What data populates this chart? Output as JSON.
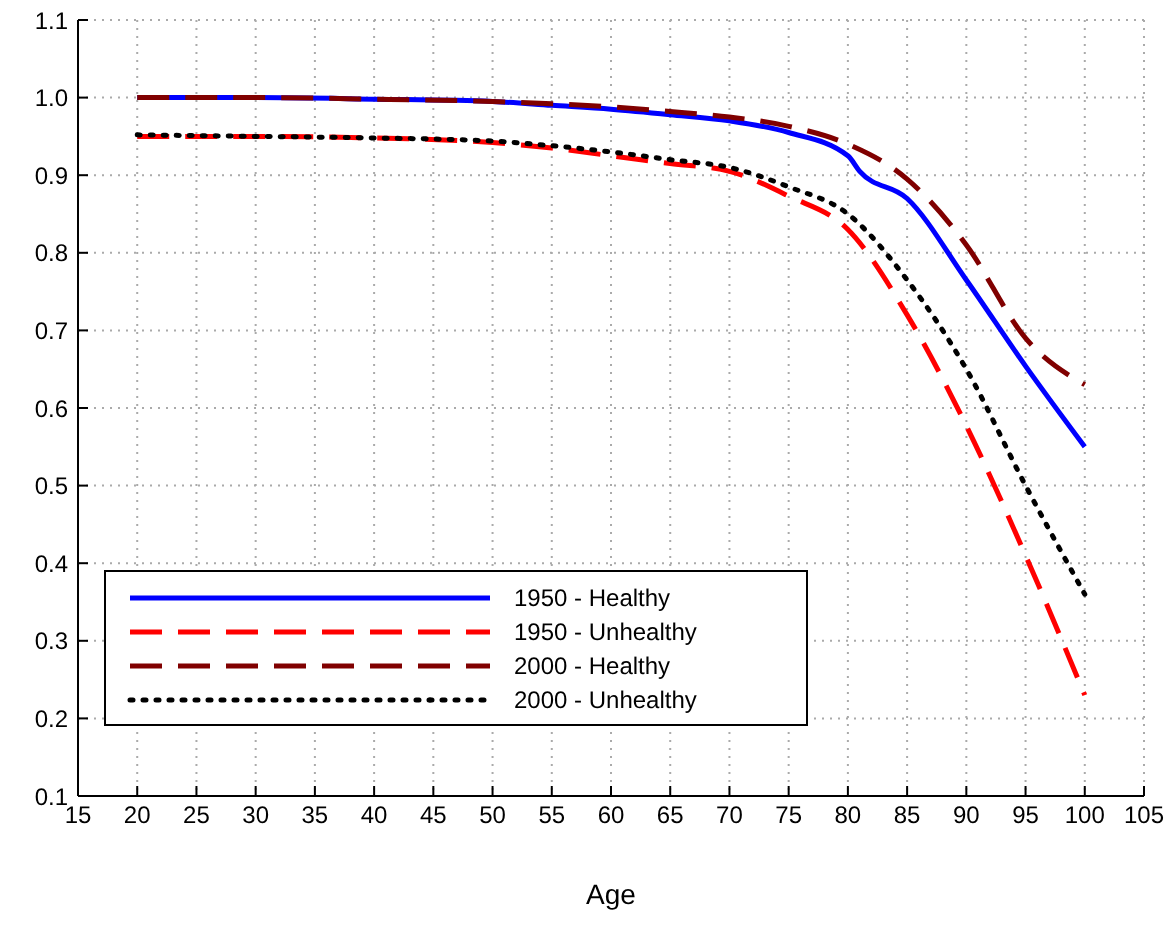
{
  "chart_data": {
    "type": "line",
    "xlabel": "Age",
    "xlim": [
      15,
      105
    ],
    "xticks": [
      15,
      20,
      25,
      30,
      35,
      40,
      45,
      50,
      55,
      60,
      65,
      70,
      75,
      80,
      85,
      90,
      95,
      100,
      105
    ],
    "ylim": [
      0.1,
      1.1
    ],
    "yticks": [
      0.1,
      0.2,
      0.3,
      0.4,
      0.5,
      0.6,
      0.7,
      0.8,
      0.9,
      {
        "value": 1,
        "label": "1.0"
      },
      1.1
    ],
    "grid": true,
    "legend": "bottom left",
    "marker": "none",
    "series": [
      {
        "name": "1950 - Healthy",
        "color": "#0000ff",
        "line_style": "solid",
        "x": [
          20,
          30,
          40,
          50,
          55,
          60,
          65,
          70,
          75,
          80,
          81,
          85,
          90,
          95,
          100
        ],
        "values": [
          1.0,
          1.0,
          0.998,
          0.995,
          0.99,
          0.985,
          0.978,
          0.97,
          0.955,
          0.925,
          0.905,
          0.87,
          0.765,
          0.654,
          0.55
        ]
      },
      {
        "name": "1950 - Unhealthy",
        "color": "#ff0000",
        "line_style": "dashed",
        "x": [
          20,
          30,
          40,
          50,
          55,
          60,
          65,
          70,
          75,
          80,
          85,
          90,
          95,
          100
        ],
        "values": [
          0.95,
          0.95,
          0.948,
          0.942,
          0.935,
          0.925,
          0.915,
          0.905,
          0.873,
          0.83,
          0.72,
          0.577,
          0.41,
          0.23
        ]
      },
      {
        "name": "2000 - Healthy",
        "color": "#800000",
        "line_style": "dashed",
        "x": [
          20,
          30,
          40,
          50,
          55,
          60,
          65,
          70,
          75,
          80,
          85,
          90,
          95,
          100
        ],
        "values": [
          1.0,
          1.0,
          0.998,
          0.995,
          0.992,
          0.988,
          0.982,
          0.975,
          0.963,
          0.94,
          0.895,
          0.81,
          0.69,
          0.63
        ]
      },
      {
        "name": "2000 - Unhealthy",
        "color": "#000000",
        "line_style": "dotted",
        "x": [
          20,
          30,
          40,
          50,
          55,
          60,
          65,
          70,
          75,
          80,
          85,
          90,
          95,
          100
        ],
        "values": [
          0.952,
          0.95,
          0.948,
          0.944,
          0.938,
          0.93,
          0.92,
          0.91,
          0.885,
          0.85,
          0.765,
          0.65,
          0.5,
          0.36
        ]
      }
    ]
  }
}
